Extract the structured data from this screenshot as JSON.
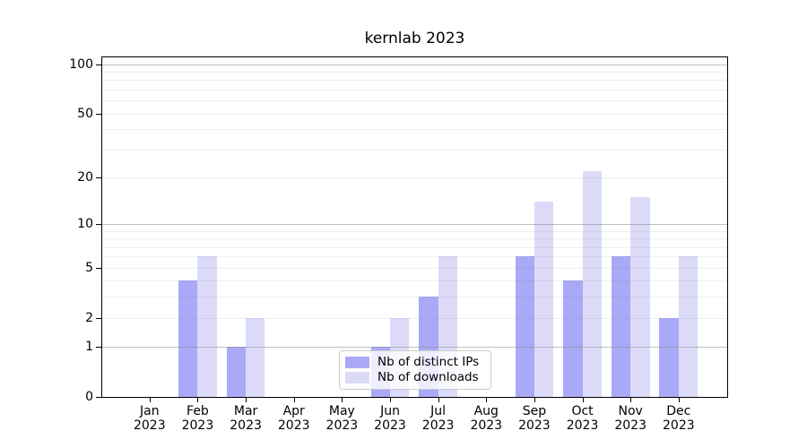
{
  "chart_data": {
    "type": "bar",
    "title": "kernlab 2023",
    "categories": [
      "Jan 2023",
      "Feb 2023",
      "Mar 2023",
      "Apr 2023",
      "May 2023",
      "Jun 2023",
      "Jul 2023",
      "Aug 2023",
      "Sep 2023",
      "Oct 2023",
      "Nov 2023",
      "Dec 2023"
    ],
    "x_tick_labels": [
      [
        "Jan",
        "2023"
      ],
      [
        "Feb",
        "2023"
      ],
      [
        "Mar",
        "2023"
      ],
      [
        "Apr",
        "2023"
      ],
      [
        "May",
        "2023"
      ],
      [
        "Jun",
        "2023"
      ],
      [
        "Jul",
        "2023"
      ],
      [
        "Aug",
        "2023"
      ],
      [
        "Sep",
        "2023"
      ],
      [
        "Oct",
        "2023"
      ],
      [
        "Nov",
        "2023"
      ],
      [
        "Dec",
        "2023"
      ]
    ],
    "series": [
      {
        "name": "Nb of distinct IPs",
        "color": "#a9a9f7",
        "values": [
          0,
          4,
          1,
          0,
          0,
          1,
          3,
          0,
          6,
          4,
          6,
          2
        ]
      },
      {
        "name": "Nb of downloads",
        "color": "#dbdbf9",
        "values": [
          0,
          6,
          2,
          0,
          0,
          2,
          6,
          0,
          14,
          22,
          15,
          6
        ]
      }
    ],
    "y_axis": {
      "scale": "log1p",
      "labeled_ticks": [
        0,
        1,
        2,
        5,
        10,
        20,
        50,
        100
      ],
      "major_gridlines": [
        1,
        10,
        100
      ],
      "minor_gridlines": [
        2,
        3,
        4,
        5,
        6,
        7,
        8,
        9,
        20,
        30,
        40,
        50,
        60,
        70,
        80,
        90
      ],
      "ylim": [
        0,
        110
      ]
    },
    "xlabel": "",
    "ylabel": "",
    "grid": true,
    "legend_position": "lower center"
  },
  "colors": {
    "bar_distinct_ips": "#a9a9f7",
    "bar_downloads": "#dbdbf9",
    "grid_major": "#8c8c8c",
    "grid_minor": "#ececec",
    "spine": "#000000",
    "background": "#ffffff"
  }
}
